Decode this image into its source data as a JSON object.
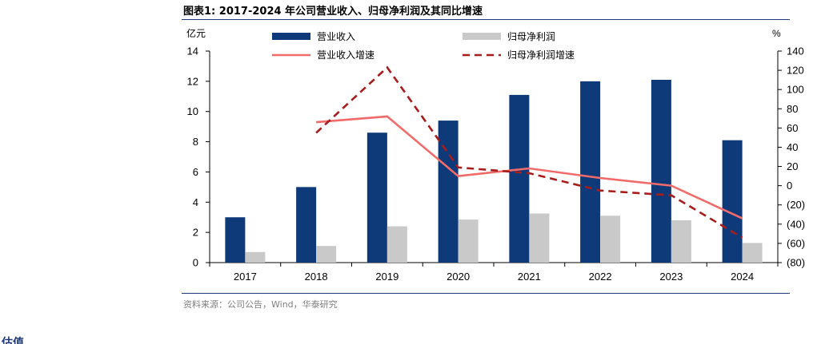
{
  "figure": {
    "title": "图表1:  2017-2024 年公司营业收入、归母净利润及其同比增速",
    "source": "资料来源：公司公告，Wind，华泰研究",
    "cut_text": "估值"
  },
  "colors": {
    "revenue": "#0e3a7a",
    "net_profit": "#c9c9c9",
    "revenue_growth": "#f26b6b",
    "net_profit_growth": "#a81c1c",
    "rule": "#1f3a78"
  },
  "chart_data": {
    "type": "bar",
    "categories": [
      "2017",
      "2018",
      "2019",
      "2020",
      "2021",
      "2022",
      "2023",
      "2024"
    ],
    "left_unit": "亿元",
    "right_unit": "%",
    "ylim": [
      0,
      14
    ],
    "y_ticks": [
      "0",
      "2",
      "4",
      "6",
      "8",
      "10",
      "12",
      "14"
    ],
    "y2lim": [
      -80,
      140
    ],
    "y2_ticks": [
      "(80)",
      "(60)",
      "(40)",
      "(20)",
      "0",
      "20",
      "40",
      "60",
      "80",
      "100",
      "120",
      "140"
    ],
    "series": [
      {
        "name": "营业收入",
        "kind": "bar",
        "axis": "left",
        "values": [
          3.0,
          5.0,
          8.6,
          9.4,
          11.1,
          12.0,
          12.1,
          8.1
        ]
      },
      {
        "name": "归母净利润",
        "kind": "bar",
        "axis": "left",
        "values": [
          0.7,
          1.1,
          2.4,
          2.85,
          3.25,
          3.1,
          2.8,
          1.3
        ]
      },
      {
        "name": "营业收入增速",
        "kind": "line",
        "axis": "right",
        "values": [
          null,
          66,
          72,
          10,
          18,
          8,
          0,
          -34
        ]
      },
      {
        "name": "归母净利润增速",
        "kind": "dashed-line",
        "axis": "right",
        "values": [
          null,
          55,
          123,
          19,
          13,
          -5,
          -10,
          -54
        ]
      }
    ]
  }
}
